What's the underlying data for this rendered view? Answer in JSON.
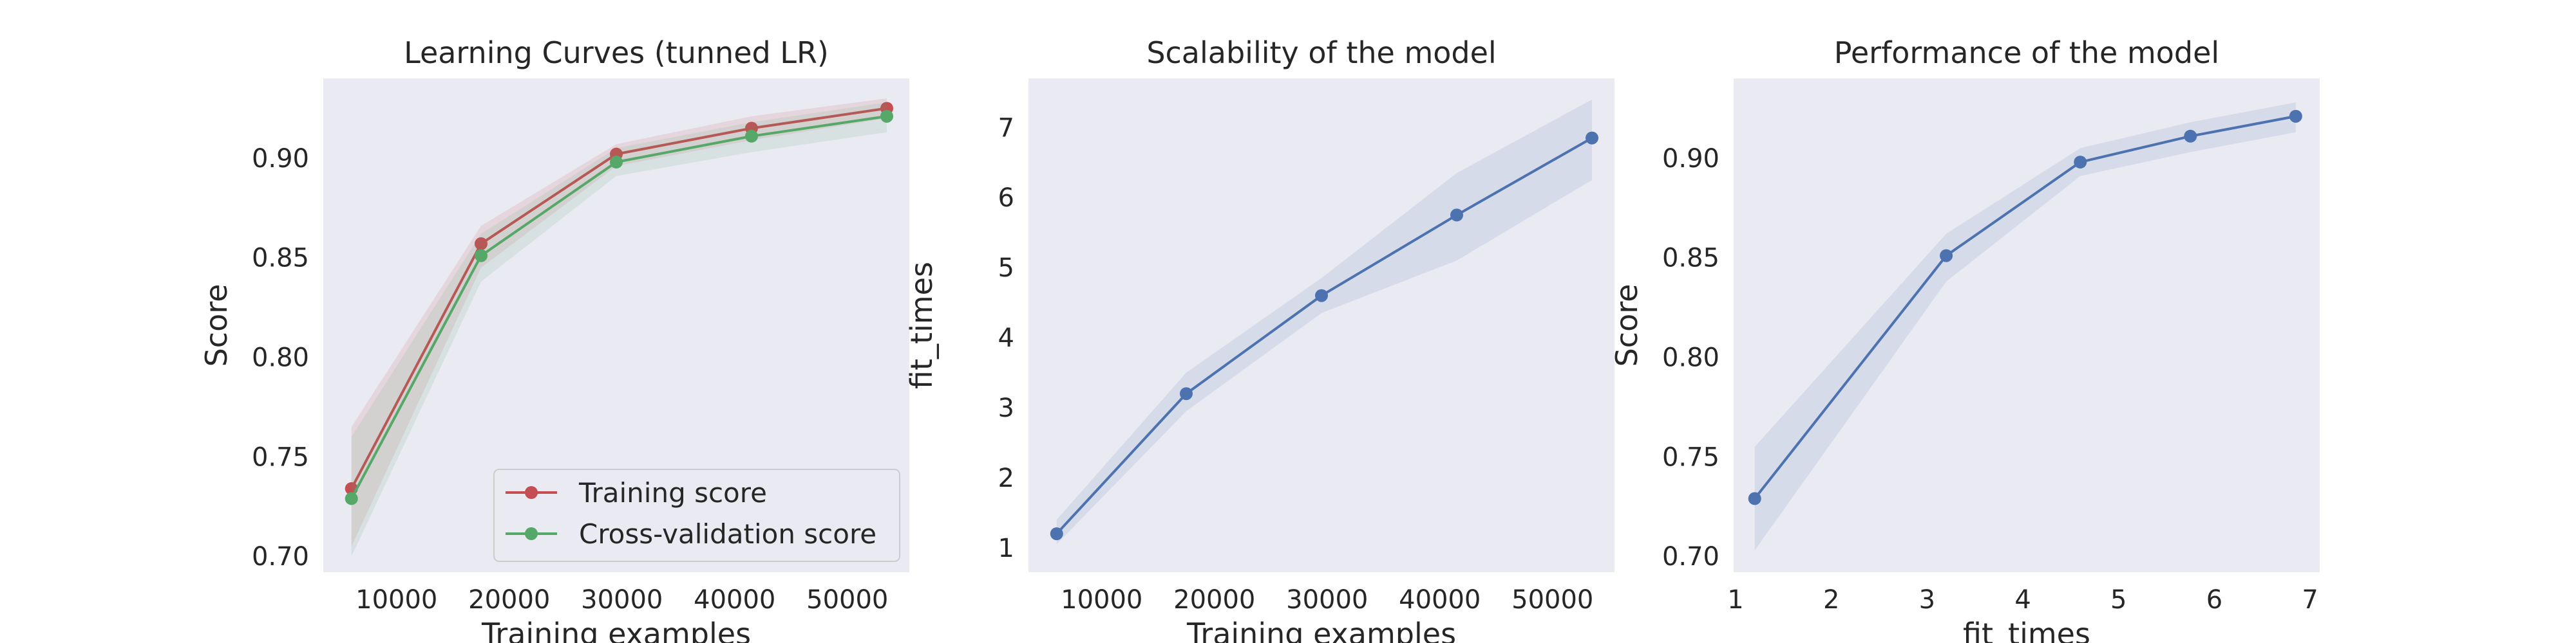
{
  "chart_data": [
    {
      "type": "line",
      "title": "Learning Curves (tunned LR)",
      "xlabel": "Training examples",
      "ylabel": "Score",
      "xlim": [
        3500,
        55500
      ],
      "ylim": [
        0.692,
        0.94
      ],
      "x_ticks": [
        10000,
        20000,
        30000,
        40000,
        50000
      ],
      "x_tick_labels": [
        "10000",
        "20000",
        "30000",
        "40000",
        "50000"
      ],
      "y_ticks": [
        0.7,
        0.75,
        0.8,
        0.85,
        0.9
      ],
      "y_tick_labels": [
        "0.70",
        "0.75",
        "0.80",
        "0.85",
        "0.90"
      ],
      "grid": false,
      "legend": "lower right",
      "x": [
        6000,
        17500,
        29500,
        41500,
        53500
      ],
      "series": [
        {
          "name": "Training score",
          "color": "#c44e52",
          "values": [
            0.734,
            0.857,
            0.902,
            0.915,
            0.925
          ],
          "lower": [
            0.705,
            0.845,
            0.896,
            0.909,
            0.92
          ],
          "upper": [
            0.765,
            0.866,
            0.907,
            0.921,
            0.93
          ]
        },
        {
          "name": "Cross-validation score",
          "color": "#55a868",
          "values": [
            0.729,
            0.851,
            0.898,
            0.911,
            0.921
          ],
          "lower": [
            0.7,
            0.838,
            0.891,
            0.903,
            0.913
          ],
          "upper": [
            0.76,
            0.862,
            0.905,
            0.918,
            0.928
          ]
        }
      ]
    },
    {
      "type": "line",
      "title": "Scalability of the model",
      "xlabel": "Training examples",
      "ylabel": "fit_times",
      "xlim": [
        3500,
        55500
      ],
      "ylim": [
        0.65,
        7.7
      ],
      "x_ticks": [
        10000,
        20000,
        30000,
        40000,
        50000
      ],
      "x_tick_labels": [
        "10000",
        "20000",
        "30000",
        "40000",
        "50000"
      ],
      "y_ticks": [
        1,
        2,
        3,
        4,
        5,
        6,
        7
      ],
      "y_tick_labels": [
        "1",
        "2",
        "3",
        "4",
        "5",
        "6",
        "7"
      ],
      "grid": false,
      "x": [
        6000,
        17500,
        29500,
        41500,
        53500
      ],
      "series": [
        {
          "color": "#4c72b0",
          "values": [
            1.2,
            3.2,
            4.6,
            5.75,
            6.85
          ],
          "lower": [
            1.05,
            2.95,
            4.35,
            5.1,
            6.25
          ],
          "upper": [
            1.4,
            3.5,
            4.85,
            6.35,
            7.4
          ]
        }
      ]
    },
    {
      "type": "line",
      "title": "Performance of the model",
      "xlabel": "fit_times",
      "ylabel": "Score",
      "xlim": [
        0.98,
        7.1
      ],
      "ylim": [
        0.692,
        0.94
      ],
      "x_ticks": [
        1,
        2,
        3,
        4,
        5,
        6,
        7
      ],
      "x_tick_labels": [
        "1",
        "2",
        "3",
        "4",
        "5",
        "6",
        "7"
      ],
      "y_ticks": [
        0.7,
        0.75,
        0.8,
        0.85,
        0.9
      ],
      "y_tick_labels": [
        "0.70",
        "0.75",
        "0.80",
        "0.85",
        "0.90"
      ],
      "grid": false,
      "x": [
        1.2,
        3.2,
        4.6,
        5.75,
        6.85
      ],
      "series": [
        {
          "color": "#4c72b0",
          "values": [
            0.729,
            0.851,
            0.898,
            0.911,
            0.921
          ],
          "lower": [
            0.703,
            0.838,
            0.891,
            0.903,
            0.913
          ],
          "upper": [
            0.755,
            0.862,
            0.905,
            0.918,
            0.928
          ]
        }
      ]
    }
  ]
}
